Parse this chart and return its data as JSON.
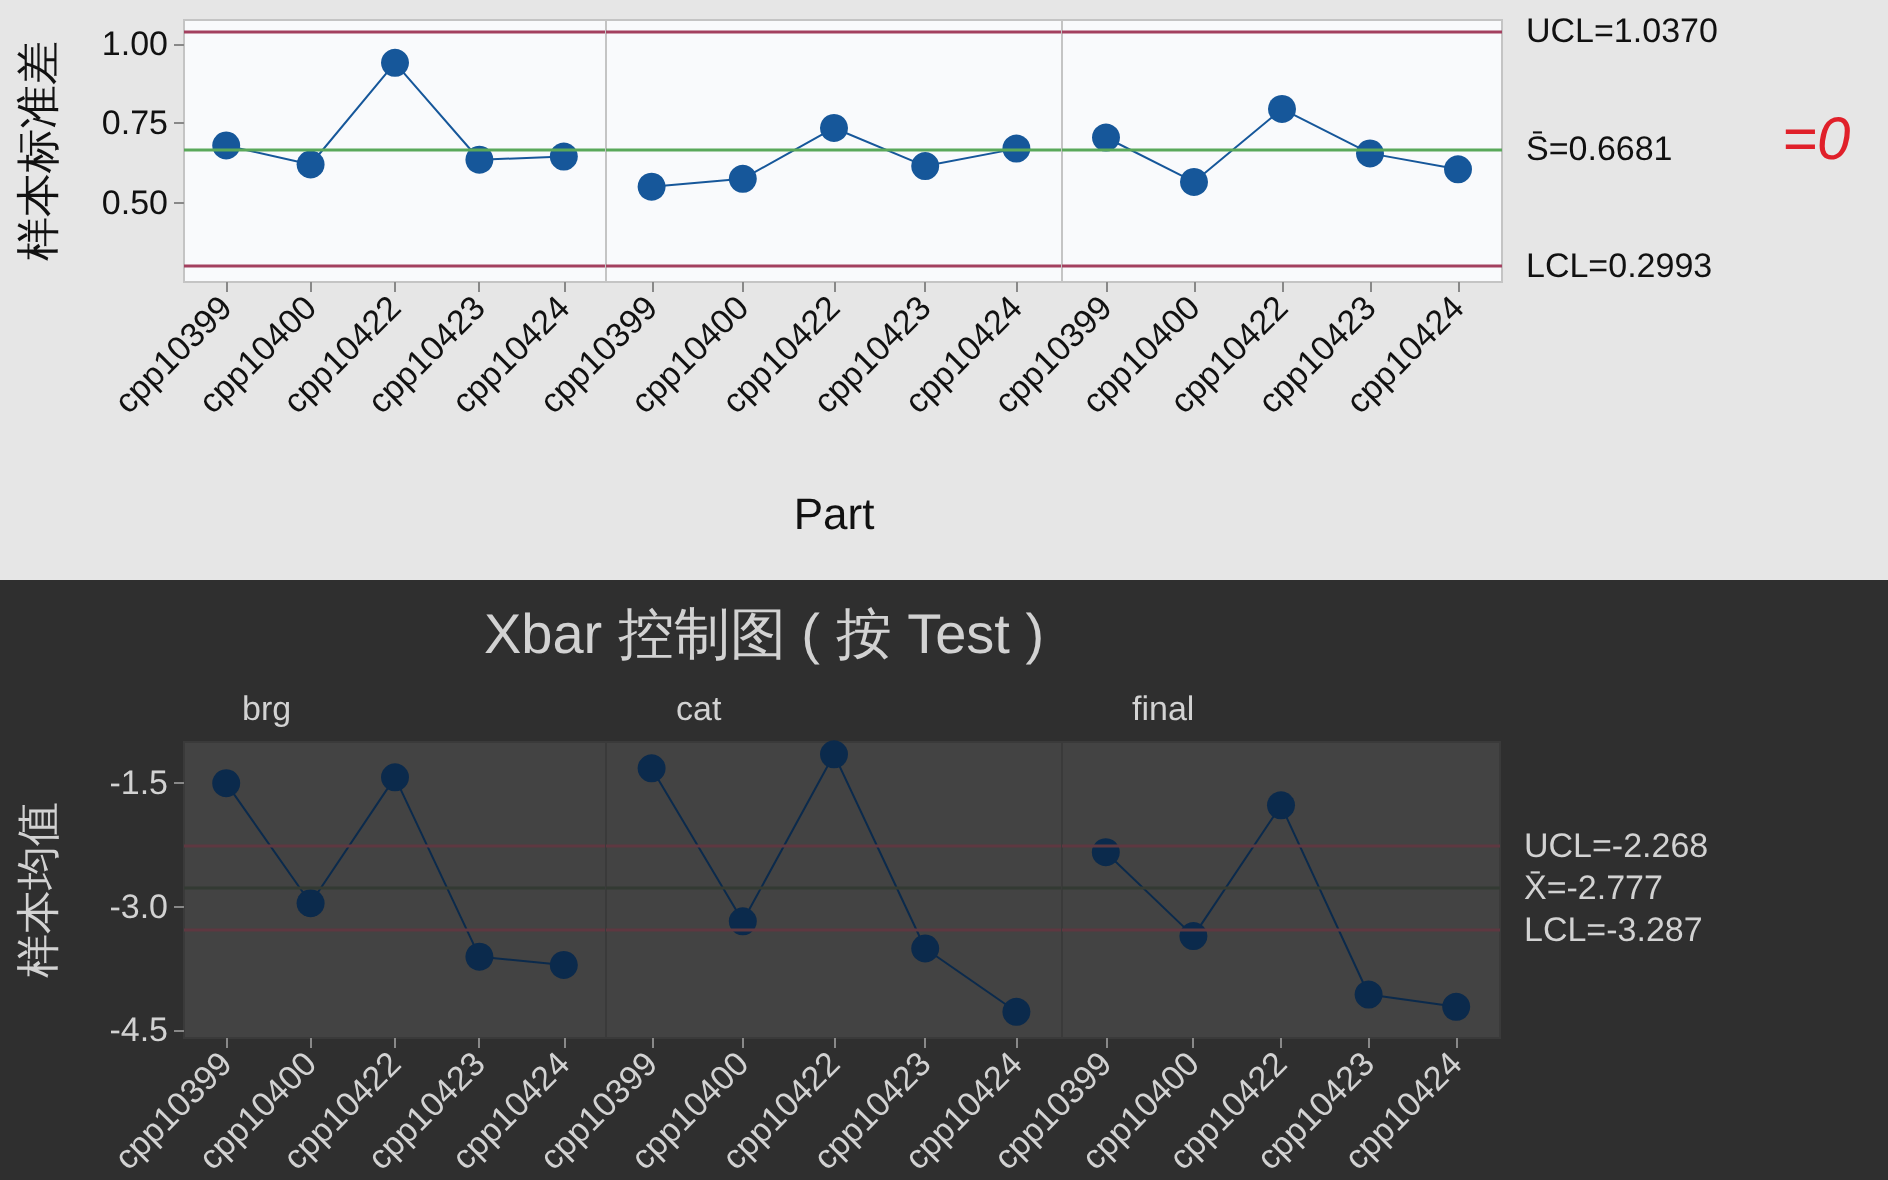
{
  "chart_data": [
    {
      "type": "line",
      "ylabel": "样本标准差",
      "categories": [
        "cpp10399",
        "cpp10400",
        "cpp10422",
        "cpp10423",
        "cpp10424"
      ],
      "series": [
        {
          "color": "#16579a",
          "values": [
            0.68,
            0.62,
            0.94,
            0.635,
            0.645
          ]
        }
      ],
      "ylim": [
        0.25,
        1.075
      ],
      "yticks": [
        {
          "value": 0.5,
          "label": "0.50"
        },
        {
          "value": 0.75,
          "label": "0.75"
        },
        {
          "value": 1,
          "label": "1.00"
        }
      ],
      "marker": "circle",
      "ref_lines": [
        {
          "axis": "y",
          "value": 1.037,
          "color": "#a3405f"
        },
        {
          "axis": "y",
          "value": 0.6681,
          "color": "#5aa85a"
        },
        {
          "axis": "y",
          "value": 0.2993,
          "color": "#a3405f"
        }
      ]
    },
    {
      "type": "line",
      "xlabel": "Part",
      "categories": [
        "cpp10399",
        "cpp10400",
        "cpp10422",
        "cpp10423",
        "cpp10424"
      ],
      "series": [
        {
          "color": "#16579a",
          "values": [
            0.55,
            0.575,
            0.735,
            0.615,
            0.67
          ]
        }
      ],
      "ylim": [
        0.25,
        1.075
      ],
      "tick_labels": "x",
      "marker": "circle",
      "ref_lines": [
        {
          "axis": "y",
          "value": 1.037,
          "color": "#a3405f"
        },
        {
          "axis": "y",
          "value": 0.6681,
          "color": "#5aa85a"
        },
        {
          "axis": "y",
          "value": 0.2993,
          "color": "#a3405f"
        }
      ]
    },
    {
      "type": "line",
      "categories": [
        "cpp10399",
        "cpp10400",
        "cpp10422",
        "cpp10423",
        "cpp10424"
      ],
      "series": [
        {
          "color": "#16579a",
          "values": [
            0.705,
            0.565,
            0.795,
            0.655,
            0.605
          ]
        }
      ],
      "ylim": [
        0.25,
        1.075
      ],
      "tick_labels": "x",
      "marker": "circle",
      "annotations": [
        "=0"
      ],
      "ref_lines": [
        {
          "axis": "y",
          "value": 1.037,
          "label": "UCL=1.0370",
          "color": "#a3405f"
        },
        {
          "axis": "y",
          "value": 0.6681,
          "label": "S̄=0.6681",
          "color": "#5aa85a"
        },
        {
          "axis": "y",
          "value": 0.2993,
          "label": "LCL=0.2993",
          "color": "#a3405f"
        }
      ]
    },
    {
      "type": "line",
      "title": "brg",
      "ylabel": "样本均值",
      "categories": [
        "cpp10399",
        "cpp10400",
        "cpp10422",
        "cpp10423",
        "cpp10424"
      ],
      "series": [
        {
          "color": "#0b2a4c",
          "values": [
            -1.5,
            -2.96,
            -1.43,
            -3.61,
            -3.71
          ]
        }
      ],
      "ylim": [
        -4.6,
        -1.0
      ],
      "yticks": [
        -4.5,
        {
          "value": -3,
          "label": "-3.0"
        },
        -1.5
      ],
      "marker": "circle",
      "ref_lines": [
        {
          "axis": "y",
          "value": -2.268,
          "color": "#5e3841"
        },
        {
          "axis": "y",
          "value": -2.777,
          "color": "#333a33"
        },
        {
          "axis": "y",
          "value": -3.287,
          "color": "#5e3841"
        }
      ]
    },
    {
      "type": "line",
      "title": "cat",
      "annotations": [
        "Xbar 控制图 ( 按 Test )"
      ],
      "categories": [
        "cpp10399",
        "cpp10400",
        "cpp10422",
        "cpp10423",
        "cpp10424"
      ],
      "series": [
        {
          "color": "#0b2a4c",
          "values": [
            -1.32,
            -3.18,
            -1.15,
            -3.51,
            -4.28
          ]
        }
      ],
      "ylim": [
        -4.6,
        -1.0
      ],
      "tick_labels": "x",
      "marker": "circle",
      "ref_lines": [
        {
          "axis": "y",
          "value": -2.268,
          "color": "#5e3841"
        },
        {
          "axis": "y",
          "value": -2.777,
          "color": "#333a33"
        },
        {
          "axis": "y",
          "value": -3.287,
          "color": "#5e3841"
        }
      ]
    },
    {
      "type": "line",
      "title": "final",
      "categories": [
        "cpp10399",
        "cpp10400",
        "cpp10422",
        "cpp10423",
        "cpp10424"
      ],
      "series": [
        {
          "color": "#0b2a4c",
          "values": [
            -2.34,
            -3.36,
            -1.77,
            -4.07,
            -4.22
          ]
        }
      ],
      "ylim": [
        -4.6,
        -1.0
      ],
      "tick_labels": "x",
      "marker": "circle",
      "ref_lines": [
        {
          "axis": "y",
          "value": -2.268,
          "label": "UCL=-2.268",
          "color": "#5e3841"
        },
        {
          "axis": "y",
          "value": -2.777,
          "label": "X̄=-2.777",
          "color": "#333a33"
        },
        {
          "axis": "y",
          "value": -3.287,
          "label": "LCL=-3.287",
          "color": "#5e3841"
        }
      ]
    }
  ]
}
